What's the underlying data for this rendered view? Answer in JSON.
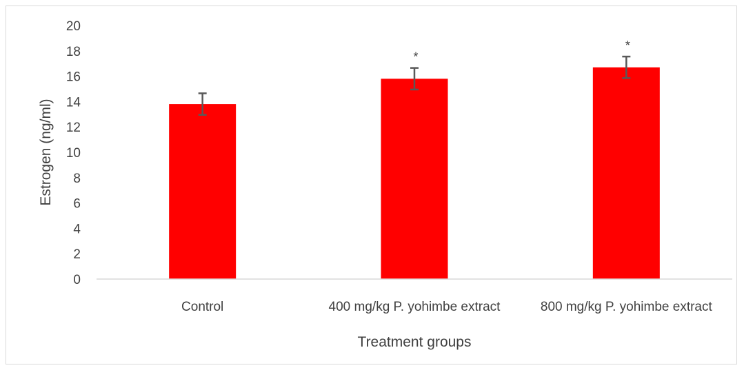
{
  "chart_data": {
    "type": "bar",
    "title": "",
    "xlabel": "Treatment groups",
    "ylabel": "Estrogen (ng/ml)",
    "ylim": [
      0,
      20
    ],
    "yticks": [
      "0",
      "2",
      "4",
      "6",
      "8",
      "10",
      "12",
      "14",
      "16",
      "18",
      "20"
    ],
    "grid": false,
    "categories": [
      "Control",
      "400 mg/kg P. yohimbe extract",
      "800 mg/kg P. yohimbe extract"
    ],
    "values": [
      13.8,
      15.8,
      16.7
    ],
    "error": [
      0.85,
      0.85,
      0.85
    ],
    "annotations": [
      "",
      "*",
      "*"
    ],
    "bar_color": "#ff0000",
    "error_color": "#595959"
  }
}
